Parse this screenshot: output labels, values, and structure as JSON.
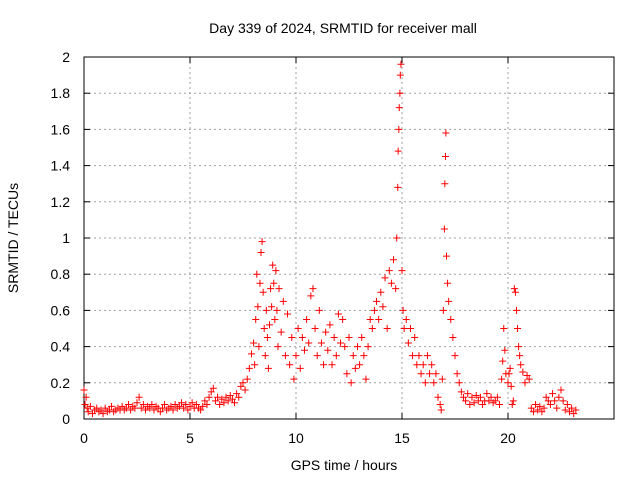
{
  "chart_data": {
    "type": "scatter",
    "title": "Day 339 of 2024, SRMTID for receiver mall",
    "xlabel": "GPS time / hours",
    "ylabel": "SRMTID / TECUs",
    "xlim": [
      0,
      25
    ],
    "ylim": [
      0,
      2
    ],
    "xticks": [
      0,
      5,
      10,
      15,
      20
    ],
    "xtick_labels": [
      "0",
      "5",
      "10",
      "15",
      "20"
    ],
    "yticks": [
      0,
      0.2,
      0.4,
      0.6,
      0.8,
      1,
      1.2,
      1.4,
      1.6,
      1.8,
      2
    ],
    "ytick_labels": [
      "0",
      "0.2",
      "0.4",
      "0.6",
      "0.8",
      "1",
      "1.2",
      "1.4",
      "1.6",
      "1.8",
      "2"
    ],
    "grid": true,
    "marker": "+",
    "series": [
      {
        "name": "mall",
        "color": "#ff0000",
        "points": [
          [
            0.0,
            0.16
          ],
          [
            0.05,
            0.08
          ],
          [
            0.1,
            0.12
          ],
          [
            0.15,
            0.06
          ],
          [
            0.2,
            0.04
          ],
          [
            0.3,
            0.07
          ],
          [
            0.4,
            0.03
          ],
          [
            0.5,
            0.05
          ],
          [
            0.6,
            0.06
          ],
          [
            0.7,
            0.04
          ],
          [
            0.8,
            0.05
          ],
          [
            0.9,
            0.03
          ],
          [
            1.0,
            0.06
          ],
          [
            1.1,
            0.04
          ],
          [
            1.2,
            0.05
          ],
          [
            1.3,
            0.07
          ],
          [
            1.4,
            0.04
          ],
          [
            1.5,
            0.05
          ],
          [
            1.6,
            0.06
          ],
          [
            1.7,
            0.05
          ],
          [
            1.8,
            0.07
          ],
          [
            1.9,
            0.05
          ],
          [
            2.0,
            0.06
          ],
          [
            2.1,
            0.08
          ],
          [
            2.2,
            0.05
          ],
          [
            2.3,
            0.07
          ],
          [
            2.4,
            0.06
          ],
          [
            2.5,
            0.09
          ],
          [
            2.6,
            0.12
          ],
          [
            2.7,
            0.06
          ],
          [
            2.8,
            0.08
          ],
          [
            2.9,
            0.05
          ],
          [
            3.0,
            0.07
          ],
          [
            3.1,
            0.06
          ],
          [
            3.2,
            0.08
          ],
          [
            3.3,
            0.05
          ],
          [
            3.4,
            0.07
          ],
          [
            3.5,
            0.06
          ],
          [
            3.6,
            0.04
          ],
          [
            3.7,
            0.06
          ],
          [
            3.8,
            0.08
          ],
          [
            3.9,
            0.05
          ],
          [
            4.0,
            0.06
          ],
          [
            4.1,
            0.07
          ],
          [
            4.2,
            0.05
          ],
          [
            4.3,
            0.08
          ],
          [
            4.4,
            0.06
          ],
          [
            4.5,
            0.07
          ],
          [
            4.6,
            0.09
          ],
          [
            4.7,
            0.06
          ],
          [
            4.8,
            0.08
          ],
          [
            4.9,
            0.05
          ],
          [
            5.0,
            0.07
          ],
          [
            5.1,
            0.09
          ],
          [
            5.2,
            0.06
          ],
          [
            5.3,
            0.08
          ],
          [
            5.4,
            0.06
          ],
          [
            5.5,
            0.05
          ],
          [
            5.6,
            0.07
          ],
          [
            5.7,
            0.1
          ],
          [
            5.8,
            0.08
          ],
          [
            5.9,
            0.12
          ],
          [
            6.0,
            0.15
          ],
          [
            6.1,
            0.17
          ],
          [
            6.2,
            0.1
          ],
          [
            6.3,
            0.12
          ],
          [
            6.4,
            0.08
          ],
          [
            6.5,
            0.11
          ],
          [
            6.6,
            0.09
          ],
          [
            6.7,
            0.12
          ],
          [
            6.8,
            0.1
          ],
          [
            6.9,
            0.13
          ],
          [
            7.0,
            0.11
          ],
          [
            7.1,
            0.09
          ],
          [
            7.2,
            0.14
          ],
          [
            7.3,
            0.12
          ],
          [
            7.4,
            0.18
          ],
          [
            7.5,
            0.2
          ],
          [
            7.6,
            0.16
          ],
          [
            7.7,
            0.22
          ],
          [
            7.8,
            0.28
          ],
          [
            7.9,
            0.36
          ],
          [
            8.0,
            0.42
          ],
          [
            8.05,
            0.3
          ],
          [
            8.1,
            0.55
          ],
          [
            8.15,
            0.8
          ],
          [
            8.2,
            0.62
          ],
          [
            8.25,
            0.4
          ],
          [
            8.3,
            0.75
          ],
          [
            8.35,
            0.92
          ],
          [
            8.4,
            0.98
          ],
          [
            8.45,
            0.7
          ],
          [
            8.5,
            0.5
          ],
          [
            8.55,
            0.35
          ],
          [
            8.6,
            0.6
          ],
          [
            8.65,
            0.45
          ],
          [
            8.7,
            0.28
          ],
          [
            8.75,
            0.52
          ],
          [
            8.8,
            0.72
          ],
          [
            8.85,
            0.62
          ],
          [
            8.9,
            0.85
          ],
          [
            8.95,
            0.75
          ],
          [
            9.0,
            0.55
          ],
          [
            9.05,
            0.82
          ],
          [
            9.1,
            0.6
          ],
          [
            9.15,
            0.4
          ],
          [
            9.2,
            0.72
          ],
          [
            9.3,
            0.48
          ],
          [
            9.4,
            0.65
          ],
          [
            9.5,
            0.35
          ],
          [
            9.6,
            0.58
          ],
          [
            9.7,
            0.3
          ],
          [
            9.8,
            0.45
          ],
          [
            9.9,
            0.22
          ],
          [
            10.0,
            0.35
          ],
          [
            10.1,
            0.5
          ],
          [
            10.2,
            0.28
          ],
          [
            10.3,
            0.45
          ],
          [
            10.4,
            0.38
          ],
          [
            10.5,
            0.55
          ],
          [
            10.6,
            0.42
          ],
          [
            10.7,
            0.68
          ],
          [
            10.8,
            0.72
          ],
          [
            10.9,
            0.5
          ],
          [
            11.0,
            0.35
          ],
          [
            11.1,
            0.6
          ],
          [
            11.2,
            0.42
          ],
          [
            11.3,
            0.3
          ],
          [
            11.4,
            0.48
          ],
          [
            11.5,
            0.38
          ],
          [
            11.6,
            0.52
          ],
          [
            11.7,
            0.3
          ],
          [
            11.8,
            0.45
          ],
          [
            11.9,
            0.35
          ],
          [
            12.0,
            0.58
          ],
          [
            12.1,
            0.42
          ],
          [
            12.2,
            0.55
          ],
          [
            12.3,
            0.4
          ],
          [
            12.4,
            0.25
          ],
          [
            12.5,
            0.45
          ],
          [
            12.6,
            0.2
          ],
          [
            12.7,
            0.35
          ],
          [
            12.8,
            0.28
          ],
          [
            12.9,
            0.4
          ],
          [
            13.0,
            0.3
          ],
          [
            13.1,
            0.45
          ],
          [
            13.2,
            0.35
          ],
          [
            13.3,
            0.22
          ],
          [
            13.4,
            0.4
          ],
          [
            13.5,
            0.55
          ],
          [
            13.6,
            0.5
          ],
          [
            13.7,
            0.6
          ],
          [
            13.8,
            0.65
          ],
          [
            13.9,
            0.55
          ],
          [
            14.0,
            0.7
          ],
          [
            14.1,
            0.62
          ],
          [
            14.2,
            0.78
          ],
          [
            14.3,
            0.5
          ],
          [
            14.4,
            0.82
          ],
          [
            14.5,
            0.75
          ],
          [
            14.6,
            0.88
          ],
          [
            14.7,
            0.72
          ],
          [
            14.75,
            1.0
          ],
          [
            14.8,
            1.28
          ],
          [
            14.82,
            1.48
          ],
          [
            14.85,
            1.6
          ],
          [
            14.87,
            1.72
          ],
          [
            14.9,
            1.8
          ],
          [
            14.92,
            1.9
          ],
          [
            14.95,
            1.96
          ],
          [
            15.0,
            0.82
          ],
          [
            15.05,
            0.6
          ],
          [
            15.1,
            0.5
          ],
          [
            15.2,
            0.55
          ],
          [
            15.3,
            0.42
          ],
          [
            15.4,
            0.5
          ],
          [
            15.5,
            0.35
          ],
          [
            15.6,
            0.45
          ],
          [
            15.7,
            0.3
          ],
          [
            15.8,
            0.35
          ],
          [
            15.9,
            0.25
          ],
          [
            16.0,
            0.3
          ],
          [
            16.1,
            0.2
          ],
          [
            16.2,
            0.35
          ],
          [
            16.3,
            0.25
          ],
          [
            16.4,
            0.3
          ],
          [
            16.5,
            0.2
          ],
          [
            16.6,
            0.25
          ],
          [
            16.7,
            0.12
          ],
          [
            16.8,
            0.08
          ],
          [
            16.85,
            0.05
          ],
          [
            16.9,
            0.22
          ],
          [
            16.95,
            0.6
          ],
          [
            17.0,
            1.05
          ],
          [
            17.02,
            1.3
          ],
          [
            17.05,
            1.45
          ],
          [
            17.07,
            1.58
          ],
          [
            17.1,
            0.9
          ],
          [
            17.15,
            0.75
          ],
          [
            17.2,
            0.65
          ],
          [
            17.3,
            0.55
          ],
          [
            17.4,
            0.45
          ],
          [
            17.5,
            0.35
          ],
          [
            17.6,
            0.25
          ],
          [
            17.7,
            0.2
          ],
          [
            17.8,
            0.15
          ],
          [
            17.9,
            0.12
          ],
          [
            18.0,
            0.1
          ],
          [
            18.1,
            0.14
          ],
          [
            18.2,
            0.08
          ],
          [
            18.3,
            0.12
          ],
          [
            18.4,
            0.09
          ],
          [
            18.5,
            0.13
          ],
          [
            18.6,
            0.1
          ],
          [
            18.7,
            0.12
          ],
          [
            18.8,
            0.08
          ],
          [
            18.9,
            0.1
          ],
          [
            19.0,
            0.14
          ],
          [
            19.1,
            0.1
          ],
          [
            19.2,
            0.12
          ],
          [
            19.3,
            0.09
          ],
          [
            19.4,
            0.1
          ],
          [
            19.5,
            0.12
          ],
          [
            19.6,
            0.08
          ],
          [
            19.7,
            0.22
          ],
          [
            19.75,
            0.32
          ],
          [
            19.8,
            0.5
          ],
          [
            19.85,
            0.38
          ],
          [
            19.9,
            0.25
          ],
          [
            20.0,
            0.2
          ],
          [
            20.05,
            0.25
          ],
          [
            20.1,
            0.28
          ],
          [
            20.15,
            0.18
          ],
          [
            20.2,
            0.08
          ],
          [
            20.25,
            0.1
          ],
          [
            20.3,
            0.72
          ],
          [
            20.35,
            0.7
          ],
          [
            20.4,
            0.6
          ],
          [
            20.45,
            0.5
          ],
          [
            20.5,
            0.4
          ],
          [
            20.55,
            0.35
          ],
          [
            20.6,
            0.3
          ],
          [
            20.7,
            0.26
          ],
          [
            20.8,
            0.2
          ],
          [
            20.9,
            0.24
          ],
          [
            21.0,
            0.22
          ],
          [
            21.1,
            0.06
          ],
          [
            21.2,
            0.04
          ],
          [
            21.3,
            0.08
          ],
          [
            21.4,
            0.05
          ],
          [
            21.5,
            0.07
          ],
          [
            21.6,
            0.04
          ],
          [
            21.7,
            0.06
          ],
          [
            21.8,
            0.12
          ],
          [
            21.9,
            0.1
          ],
          [
            22.0,
            0.08
          ],
          [
            22.1,
            0.14
          ],
          [
            22.2,
            0.1
          ],
          [
            22.3,
            0.06
          ],
          [
            22.4,
            0.12
          ],
          [
            22.5,
            0.16
          ],
          [
            22.6,
            0.1
          ],
          [
            22.7,
            0.05
          ],
          [
            22.8,
            0.08
          ],
          [
            22.9,
            0.04
          ],
          [
            23.0,
            0.06
          ],
          [
            23.1,
            0.03
          ],
          [
            23.2,
            0.05
          ]
        ]
      }
    ]
  }
}
